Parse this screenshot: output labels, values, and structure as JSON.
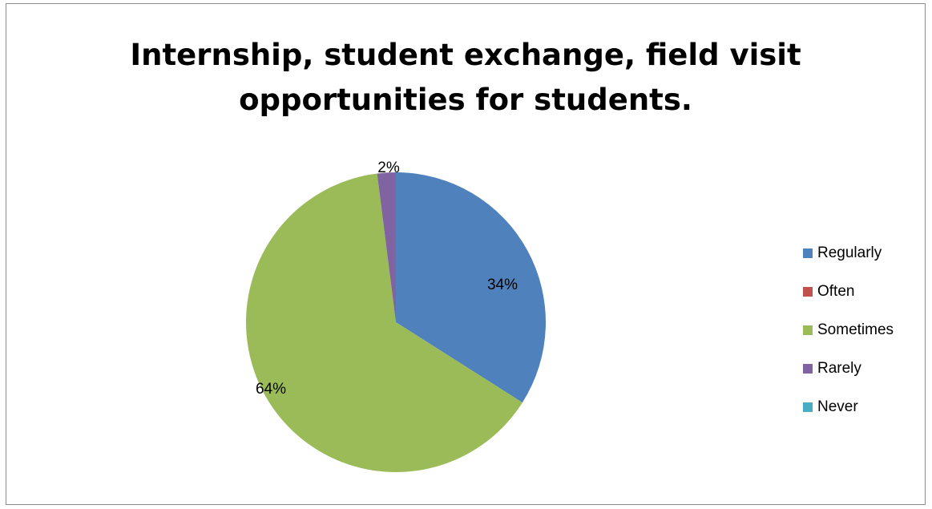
{
  "chart_data": {
    "type": "pie",
    "title_lines": [
      "Internship, student exchange, field visit",
      "opportunities for students."
    ],
    "categories": [
      "Regularly",
      "Often",
      "Sometimes",
      "Rarely",
      "Never"
    ],
    "values": [
      34,
      0,
      64,
      2,
      0
    ],
    "data_labels": [
      "34%",
      "",
      "64%",
      "2%",
      ""
    ],
    "colors": [
      "#4f81bd",
      "#c0504d",
      "#9bbb59",
      "#8064a2",
      "#4bacc6"
    ],
    "legend_position": "right",
    "start_angle": "12 o'clock",
    "direction": "clockwise"
  }
}
